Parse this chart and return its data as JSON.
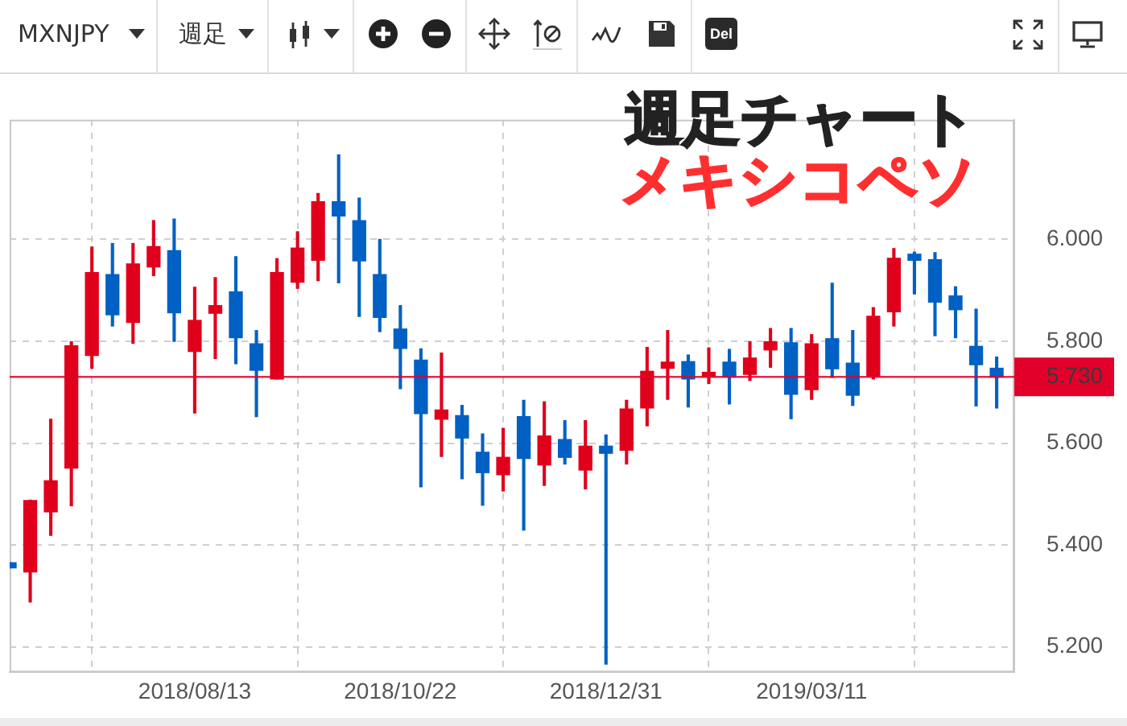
{
  "chart_data": {
    "type": "candlestick",
    "title": "週足チャート",
    "subtitle": "メキシコペソ",
    "x": [
      "2018-06-11",
      "2018-06-18",
      "2018-06-25",
      "2018-07-02",
      "2018-07-09",
      "2018-07-16",
      "2018-07-23",
      "2018-07-30",
      "2018-08-06",
      "2018-08-13",
      "2018-08-20",
      "2018-08-27",
      "2018-09-03",
      "2018-09-10",
      "2018-09-17",
      "2018-09-24",
      "2018-10-01",
      "2018-10-08",
      "2018-10-15",
      "2018-10-22",
      "2018-10-29",
      "2018-11-05",
      "2018-11-12",
      "2018-11-19",
      "2018-11-26",
      "2018-12-03",
      "2018-12-10",
      "2018-12-17",
      "2018-12-24",
      "2018-12-31",
      "2019-01-07",
      "2019-01-14",
      "2019-01-21",
      "2019-01-28",
      "2019-02-04",
      "2019-02-11",
      "2019-02-18",
      "2019-02-25",
      "2019-03-04",
      "2019-03-11",
      "2019-03-18",
      "2019-03-25",
      "2019-04-01",
      "2019-04-08",
      "2019-04-15",
      "2019-04-22",
      "2019-04-29",
      "2019-05-06",
      "2019-05-13"
    ],
    "ohlc": [
      [
        5.365,
        5.365,
        5.355,
        5.355
      ],
      [
        5.347,
        5.488,
        5.288,
        5.487
      ],
      [
        5.465,
        5.647,
        5.419,
        5.526
      ],
      [
        5.551,
        5.799,
        5.477,
        5.791
      ],
      [
        5.772,
        5.985,
        5.747,
        5.935
      ],
      [
        5.931,
        5.992,
        5.83,
        5.852
      ],
      [
        5.837,
        5.992,
        5.796,
        5.952
      ],
      [
        5.946,
        6.037,
        5.929,
        5.986
      ],
      [
        5.978,
        6.04,
        5.8,
        5.856
      ],
      [
        5.78,
        5.906,
        5.659,
        5.841
      ],
      [
        5.855,
        5.925,
        5.766,
        5.87
      ],
      [
        5.897,
        5.966,
        5.756,
        5.807
      ],
      [
        5.795,
        5.821,
        5.652,
        5.743
      ],
      [
        5.726,
        5.962,
        5.726,
        5.935
      ],
      [
        5.916,
        6.015,
        5.904,
        5.983
      ],
      [
        5.959,
        6.09,
        5.919,
        6.074
      ],
      [
        6.074,
        6.166,
        5.915,
        6.046
      ],
      [
        6.037,
        6.081,
        5.849,
        5.958
      ],
      [
        5.931,
        6.0,
        5.819,
        5.847
      ],
      [
        5.824,
        5.87,
        5.707,
        5.786
      ],
      [
        5.763,
        5.785,
        5.514,
        5.658
      ],
      [
        5.647,
        5.777,
        5.574,
        5.665
      ],
      [
        5.654,
        5.674,
        5.53,
        5.61
      ],
      [
        5.582,
        5.618,
        5.478,
        5.542
      ],
      [
        5.538,
        5.629,
        5.506,
        5.572
      ],
      [
        5.652,
        5.684,
        5.429,
        5.57
      ],
      [
        5.557,
        5.681,
        5.517,
        5.614
      ],
      [
        5.607,
        5.644,
        5.559,
        5.572
      ],
      [
        5.547,
        5.644,
        5.51,
        5.594
      ],
      [
        5.594,
        5.616,
        5.166,
        5.58
      ],
      [
        5.586,
        5.684,
        5.559,
        5.667
      ],
      [
        5.669,
        5.788,
        5.634,
        5.741
      ],
      [
        5.747,
        5.821,
        5.686,
        5.759
      ],
      [
        5.76,
        5.773,
        5.671,
        5.726
      ],
      [
        5.73,
        5.787,
        5.717,
        5.739
      ],
      [
        5.759,
        5.784,
        5.677,
        5.73
      ],
      [
        5.735,
        5.799,
        5.723,
        5.767
      ],
      [
        5.783,
        5.825,
        5.749,
        5.799
      ],
      [
        5.797,
        5.825,
        5.648,
        5.696
      ],
      [
        5.705,
        5.813,
        5.686,
        5.795
      ],
      [
        5.805,
        5.914,
        5.729,
        5.746
      ],
      [
        5.757,
        5.821,
        5.674,
        5.694
      ],
      [
        5.731,
        5.866,
        5.726,
        5.849
      ],
      [
        5.858,
        5.982,
        5.83,
        5.963
      ],
      [
        5.971,
        5.975,
        5.893,
        5.959
      ],
      [
        5.96,
        5.974,
        5.811,
        5.877
      ],
      [
        5.889,
        5.907,
        5.807,
        5.862
      ],
      [
        5.79,
        5.863,
        5.673,
        5.754
      ],
      [
        5.747,
        5.769,
        5.669,
        5.73
      ]
    ],
    "colors": [
      "#0060c4",
      "#e0001b",
      "#e0001b",
      "#e0001b",
      "#e0001b",
      "#0060c4",
      "#e0001b",
      "#e0001b",
      "#0060c4",
      "#e0001b",
      "#e0001b",
      "#0060c4",
      "#0060c4",
      "#e0001b",
      "#e0001b",
      "#e0001b",
      "#0060c4",
      "#0060c4",
      "#0060c4",
      "#0060c4",
      "#0060c4",
      "#e0001b",
      "#0060c4",
      "#0060c4",
      "#e0001b",
      "#0060c4",
      "#e0001b",
      "#0060c4",
      "#e0001b",
      "#0060c4",
      "#e0001b",
      "#e0001b",
      "#e0001b",
      "#0060c4",
      "#e0001b",
      "#0060c4",
      "#e0001b",
      "#e0001b",
      "#0060c4",
      "#e0001b",
      "#0060c4",
      "#0060c4",
      "#e0001b",
      "#e0001b",
      "#0060c4",
      "#0060c4",
      "#0060c4",
      "#0060c4",
      "#0060c4"
    ],
    "xlim": [
      "2018-06-11",
      "2019-05-19"
    ],
    "xticks": [
      {
        "value": "2018-08-13",
        "label": "2018/08/13"
      },
      {
        "value": "2018-10-22",
        "label": "2018/10/22"
      },
      {
        "value": "2018-12-31",
        "label": "2018/12/31"
      },
      {
        "value": "2019-03-11",
        "label": "2019/03/11"
      }
    ],
    "ylim": [
      5.15,
      6.235
    ],
    "yticks": [
      {
        "value": 5.2,
        "label": "5.200"
      },
      {
        "value": 5.4,
        "label": "5.400"
      },
      {
        "value": 5.6,
        "label": "5.600"
      },
      {
        "value": 5.8,
        "label": "5.800"
      },
      {
        "value": 6.0,
        "label": "6.000"
      }
    ],
    "grid": true,
    "ref_lines": [
      {
        "axis": "y",
        "value": 5.73,
        "label": "5.730",
        "color": "#e2002b"
      }
    ],
    "annotations": [
      "MXNJPY",
      "週足",
      "Del"
    ]
  }
}
